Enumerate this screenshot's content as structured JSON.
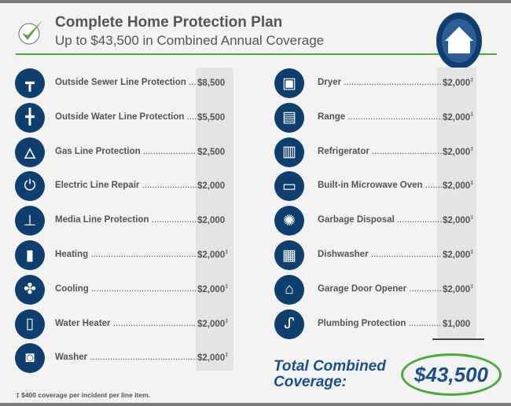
{
  "header": {
    "title": "Complete Home Protection Plan",
    "subtitle": "Up to $43,500 in Combined Annual Coverage",
    "icons": [
      "checkmark-icon",
      "house-icon"
    ]
  },
  "left_items": [
    {
      "label": "Outside Sewer Line Protection",
      "value": "$8,500",
      "mark": "",
      "icon": "pipe-icon",
      "glyph": "┳"
    },
    {
      "label": "Outside Water Line Protection",
      "value": "$5,500",
      "mark": "",
      "icon": "water-pipe-icon",
      "glyph": "╋"
    },
    {
      "label": "Gas Line Protection",
      "value": "$2,500",
      "mark": "",
      "icon": "flame-icon",
      "glyph": "🜂"
    },
    {
      "label": "Electric Line Repair",
      "value": "$2,000",
      "mark": "",
      "icon": "plug-icon",
      "glyph": "⏻"
    },
    {
      "label": "Media Line Protection",
      "value": "$2,000",
      "mark": "",
      "icon": "cable-splitter-icon",
      "glyph": "⊥"
    },
    {
      "label": "Heating",
      "value": "$2,000",
      "mark": "‡",
      "icon": "furnace-icon",
      "glyph": "▮"
    },
    {
      "label": "Cooling",
      "value": "$2,000",
      "mark": "‡",
      "icon": "fan-icon",
      "glyph": "✤"
    },
    {
      "label": "Water Heater",
      "value": "$2,000",
      "mark": "‡",
      "icon": "water-heater-icon",
      "glyph": "▯"
    },
    {
      "label": "Washer",
      "value": "$2,000",
      "mark": "‡",
      "icon": "washer-icon",
      "glyph": "◙"
    }
  ],
  "right_items": [
    {
      "label": "Dryer",
      "value": "$2,000",
      "mark": "‡",
      "icon": "dryer-icon",
      "glyph": "▣"
    },
    {
      "label": "Range",
      "value": "$2,000",
      "mark": "‡",
      "icon": "range-icon",
      "glyph": "▤"
    },
    {
      "label": "Refrigerator",
      "value": "$2,000",
      "mark": "‡",
      "icon": "refrigerator-icon",
      "glyph": "▥"
    },
    {
      "label": "Built-in Microwave Oven",
      "value": "$2,000",
      "mark": "‡",
      "icon": "microwave-icon",
      "glyph": "▭"
    },
    {
      "label": "Garbage Disposal",
      "value": "$2,000",
      "mark": "‡",
      "icon": "garbage-disposal-icon",
      "glyph": "✺"
    },
    {
      "label": "Dishwasher",
      "value": "$2,000",
      "mark": "‡",
      "icon": "dishwasher-icon",
      "glyph": "▦"
    },
    {
      "label": "Garage Door Opener",
      "value": "$2,000",
      "mark": "‡",
      "icon": "garage-door-icon",
      "glyph": "⌂"
    },
    {
      "label": "Plumbing Protection",
      "value": "$1,000",
      "mark": "",
      "icon": "plumbing-icon",
      "glyph": "ᔑ"
    }
  ],
  "total": {
    "label_line1": "Total Combined",
    "label_line2": "Coverage:",
    "amount": "$43,500"
  },
  "footnote": "‡ $400 coverage per incident per line item.",
  "colors": {
    "navy": "#0e3f6e",
    "green": "#4caa3c",
    "text": "#555555",
    "total_blue": "#1a4f8e"
  }
}
